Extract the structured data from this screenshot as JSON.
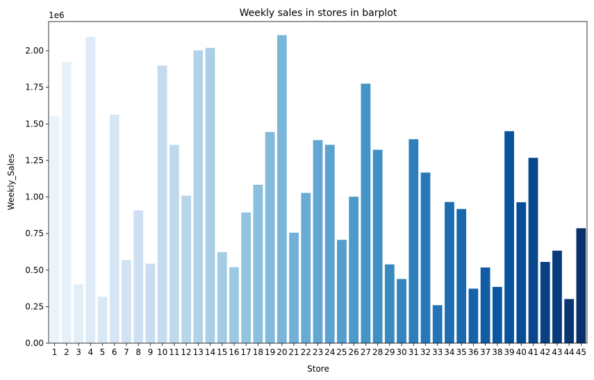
{
  "chart_data": {
    "type": "bar",
    "title": "Weekly sales in stores in barplot",
    "xlabel": "Store",
    "ylabel": "Weekly_Sales",
    "offset_text": "1e6",
    "palette": "Blues",
    "color_start": "#f7fbff",
    "color_end": "#08306b",
    "grid": false,
    "legend": "none",
    "ylim": [
      0,
      2.2
    ],
    "yticks": [
      "0.00",
      "0.25",
      "0.50",
      "0.75",
      "1.00",
      "1.25",
      "1.50",
      "1.75",
      "2.00"
    ],
    "categories": [
      "1",
      "2",
      "3",
      "4",
      "5",
      "6",
      "7",
      "8",
      "9",
      "10",
      "11",
      "12",
      "13",
      "14",
      "15",
      "16",
      "17",
      "18",
      "19",
      "20",
      "21",
      "22",
      "23",
      "24",
      "25",
      "26",
      "27",
      "28",
      "29",
      "30",
      "31",
      "32",
      "33",
      "34",
      "35",
      "36",
      "37",
      "38",
      "39",
      "40",
      "41",
      "42",
      "43",
      "44",
      "45"
    ],
    "values": [
      1.555,
      1.925,
      0.402,
      2.095,
      0.318,
      1.564,
      0.57,
      0.909,
      0.544,
      1.899,
      1.356,
      1.009,
      2.003,
      2.02,
      0.623,
      0.52,
      0.894,
      1.084,
      1.444,
      2.107,
      0.756,
      1.028,
      1.389,
      1.357,
      0.707,
      1.002,
      1.775,
      1.323,
      0.539,
      0.439,
      1.395,
      1.167,
      0.26,
      0.966,
      0.918,
      0.373,
      0.518,
      0.385,
      1.45,
      0.964,
      1.268,
      0.556,
      0.633,
      0.302,
      0.786
    ]
  }
}
